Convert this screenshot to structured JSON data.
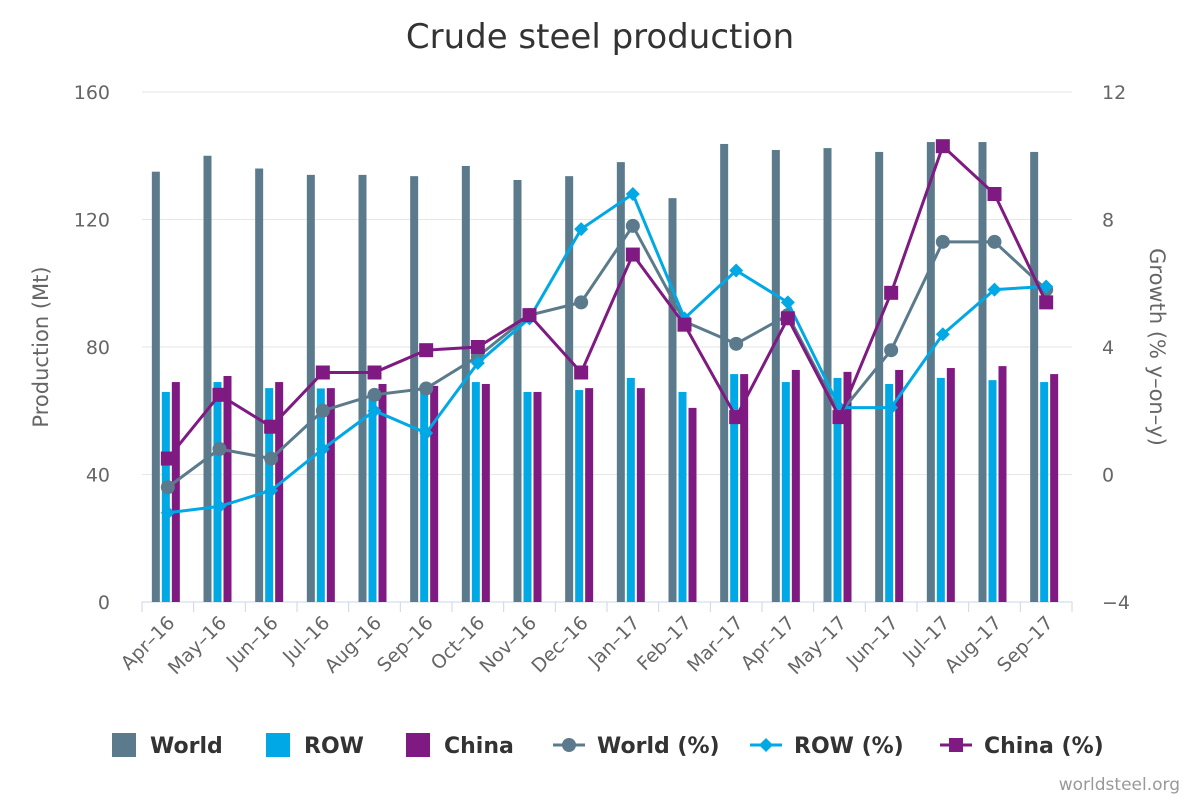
{
  "chart_data": {
    "type": "bar+line",
    "title": "Crude steel production",
    "ylabel_left": "Production (Mt)",
    "ylabel_right": "Growth (% y-on-y)",
    "ylim_left": [
      0,
      160
    ],
    "ylim_right": [
      -4,
      12
    ],
    "yticks_left": [
      "0",
      "40",
      "80",
      "120",
      "160"
    ],
    "yticks_right": [
      "-4",
      "0",
      "4",
      "8",
      "12"
    ],
    "grid": true,
    "legend_position": "bottom",
    "categories": [
      "Apr-16",
      "May-16",
      "Jun-16",
      "Jul-16",
      "Aug-16",
      "Sep-16",
      "Oct-16",
      "Nov-16",
      "Dec-16",
      "Jan-17",
      "Feb-17",
      "Mar-17",
      "Apr-17",
      "May-17",
      "Jun-17",
      "Jul-17",
      "Aug-17",
      "Sep-17"
    ],
    "bar_series": [
      {
        "name": "World",
        "color": "#5b7b8c",
        "values": [
          135,
          140,
          136,
          134,
          134,
          133.6,
          136.8,
          132.4,
          133.6,
          138,
          126.7,
          143.7,
          141.8,
          142.4,
          141.2,
          144.3,
          144.3,
          141.2
        ]
      },
      {
        "name": "ROW",
        "color": "#00a9e6",
        "values": [
          65.9,
          69,
          67.1,
          67,
          66,
          66,
          69,
          65.9,
          66.5,
          70.3,
          65.9,
          71.5,
          69,
          70.3,
          68.4,
          70.3,
          69.6,
          69
        ]
      },
      {
        "name": "China",
        "color": "#7e1a81",
        "values": [
          69,
          70.9,
          69,
          67.1,
          68.4,
          67.8,
          68.4,
          65.9,
          67.1,
          67.1,
          60.9,
          71.5,
          72.8,
          72.2,
          72.8,
          73.4,
          74,
          71.5
        ]
      }
    ],
    "line_series": [
      {
        "name": "World (%)",
        "color": "#5b7b8c",
        "marker": "circle",
        "values": [
          -0.4,
          0.8,
          0.5,
          2.0,
          2.5,
          2.7,
          3.7,
          5.0,
          5.4,
          7.8,
          4.8,
          4.1,
          5.0,
          1.9,
          3.9,
          7.3,
          7.3,
          5.8
        ]
      },
      {
        "name": "ROW (%)",
        "color": "#00a9e6",
        "marker": "diamond",
        "values": [
          -1.2,
          -1.0,
          -0.5,
          0.8,
          2.0,
          1.3,
          3.5,
          4.9,
          7.7,
          8.8,
          4.9,
          6.4,
          5.4,
          2.1,
          2.1,
          4.4,
          5.8,
          5.9
        ]
      },
      {
        "name": "China (%)",
        "color": "#7e1a81",
        "marker": "square",
        "values": [
          0.5,
          2.5,
          1.5,
          3.2,
          3.2,
          3.9,
          4.0,
          5.0,
          3.2,
          6.9,
          4.7,
          1.8,
          4.9,
          1.8,
          5.7,
          10.3,
          8.8,
          5.4
        ]
      }
    ],
    "credit": "worldsteel.org"
  }
}
